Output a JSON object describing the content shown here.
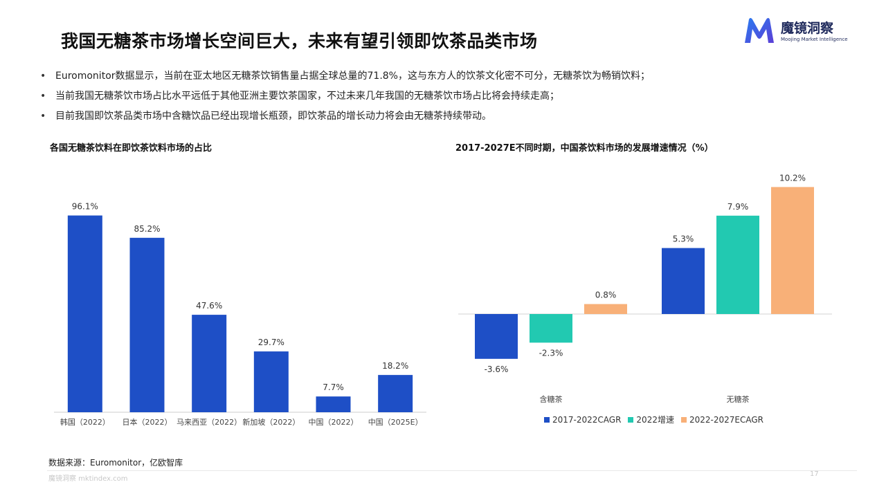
{
  "title": "我国无糖茶市场增长空间巨大，未来有望引领即饮茶品类市场",
  "logo": {
    "name": "魔镜洞察",
    "sub": "Moojing Market Intelligence"
  },
  "bullets": [
    "Euromonitor数据显示，当前在亚太地区无糖茶饮销售量占据全球总量的71.8%，这与东方人的饮茶文化密不可分，无糖茶饮为畅销饮料；",
    "当前我国无糖茶饮市场占比水平远低于其他亚洲主要饮茶国家，不过未来几年我国的无糖茶饮市场占比将会持续走高；",
    "目前我国即饮茶品类市场中含糖饮品已经出现增长瓶颈，即饮茶品的增长动力将会由无糖茶持续带动。"
  ],
  "colors": {
    "blue": "#1e4fc6",
    "teal": "#22c9b1",
    "orange": "#f8b078"
  },
  "chart_data": [
    {
      "type": "bar",
      "title": "各国无糖茶饮料在即饮茶饮料市场的占比",
      "categories": [
        "韩国（2022）",
        "日本（2022）",
        "马来西亚（2022）",
        "新加坡（2022）",
        "中国（2022）",
        "中国（2025E）"
      ],
      "values": [
        96.1,
        85.2,
        47.6,
        29.7,
        7.7,
        18.2
      ],
      "value_labels": [
        "96.1%",
        "85.2%",
        "47.6%",
        "29.7%",
        "7.7%",
        "18.2%"
      ],
      "unit": "%",
      "ylim": [
        0,
        100
      ],
      "grid": false
    },
    {
      "type": "bar",
      "title": "2017-2027E不同时期，中国茶饮料市场的发展增速情况（%）",
      "categories": [
        "含糖茶",
        "无糖茶"
      ],
      "series": [
        {
          "name": "2017-2022CAGR",
          "values": [
            -3.6,
            5.3
          ],
          "labels": [
            "-3.6%",
            "5.3%"
          ],
          "color": "#1e4fc6"
        },
        {
          "name": "2022增速",
          "values": [
            -2.3,
            7.9
          ],
          "labels": [
            "-2.3%",
            "7.9%"
          ],
          "color": "#22c9b1"
        },
        {
          "name": "2022-2027ECAGR",
          "values": [
            0.8,
            10.2
          ],
          "labels": [
            "0.8%",
            "10.2%"
          ],
          "color": "#f8b078"
        }
      ],
      "ylim": [
        -4.5,
        11
      ],
      "legend": "bottom",
      "grid": false
    }
  ],
  "source": "数据来源：Euromonitor，亿欧智库",
  "footer": "魔镜洞察 mktindex.com",
  "page_number": "17"
}
